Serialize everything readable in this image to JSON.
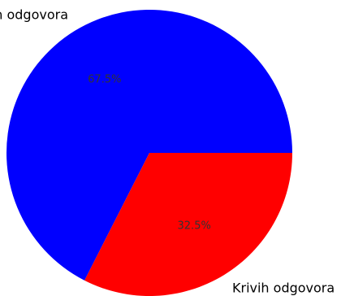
{
  "chart_data": {
    "type": "pie",
    "slices": [
      {
        "label": "Točnih odgovora",
        "value": 67.5,
        "pct_label": "67.5%",
        "color": "#0000ff"
      },
      {
        "label": "Krivih odgovora",
        "value": 32.5,
        "pct_label": "32.5%",
        "color": "#ff0000"
      }
    ],
    "start_angle_deg": 0,
    "direction": "counterclockwise",
    "pct_label_color": "#333333",
    "label_color": "#000000"
  }
}
